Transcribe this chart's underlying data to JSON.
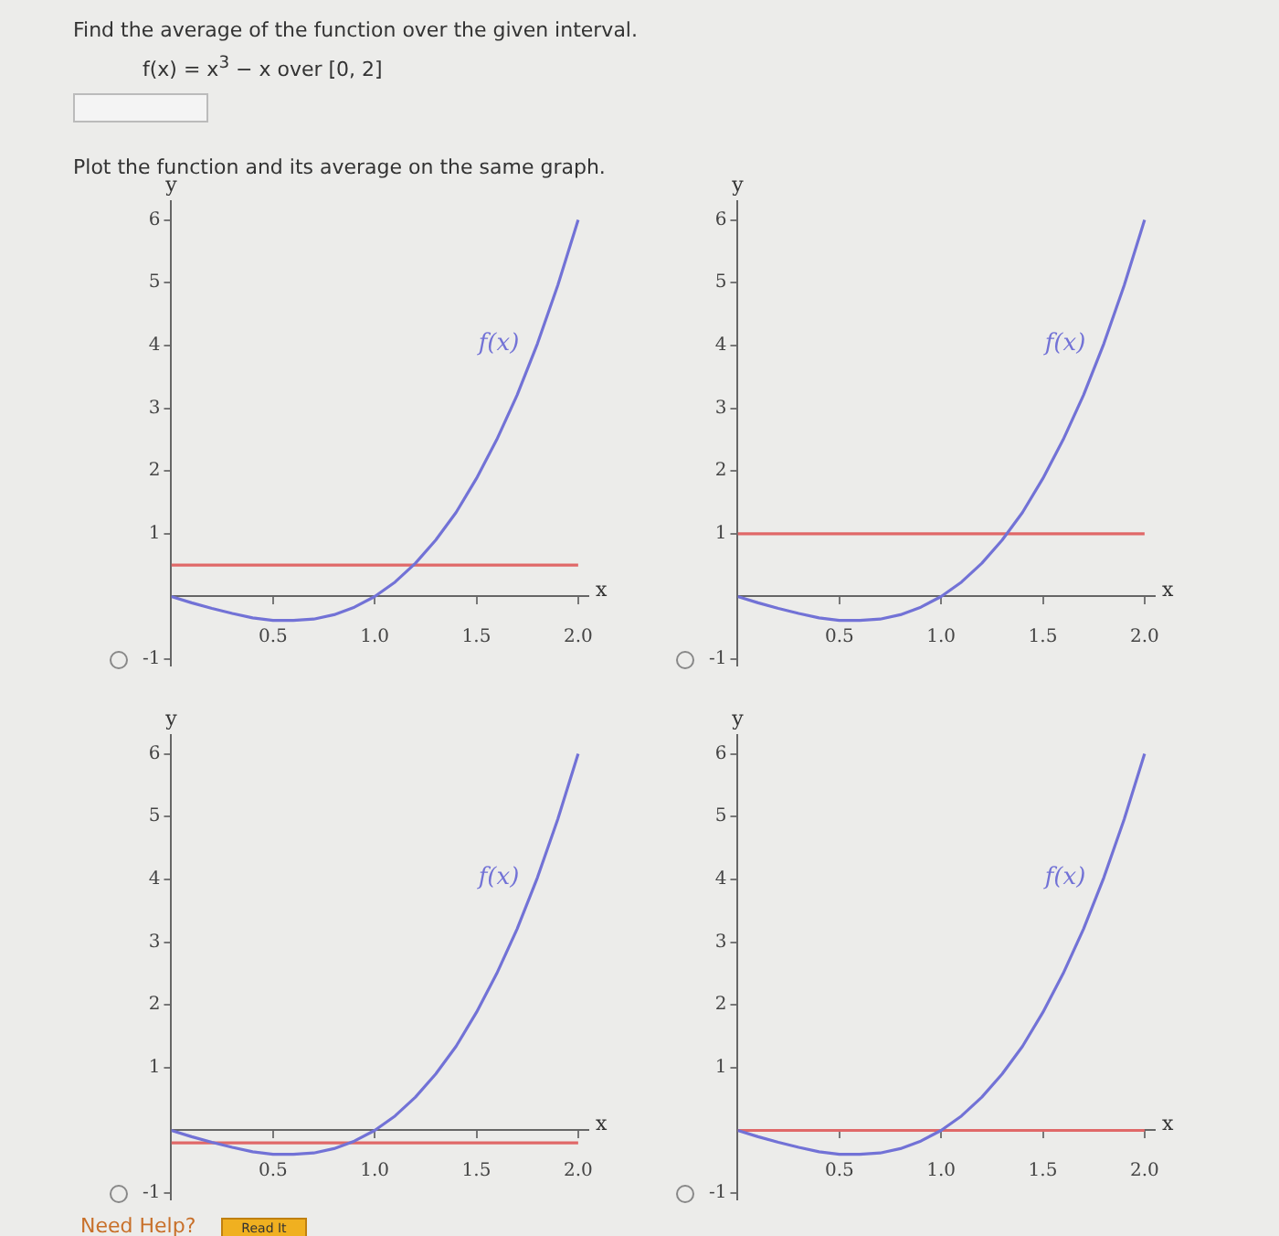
{
  "chart_data": [
    {
      "type": "line",
      "title": "Find the average of the function over the given interval.",
      "subtitle": "f(x) = x$^{3}$ − x over [0, 2]",
      "xlabel": "x",
      "ylabel": "y",
      "xlim": [
        0,
        2.05
      ],
      "ylim": [
        -1.1,
        6.3
      ],
      "xticks": [
        {
          "value": 0.5,
          "label": "0.5"
        },
        {
          "value": 1,
          "label": "1.0"
        },
        {
          "value": 1.5,
          "label": "1.5"
        },
        {
          "value": 2,
          "label": "2.0"
        }
      ],
      "yticks": [
        -1,
        1,
        2,
        3,
        4,
        5,
        6
      ],
      "series": [
        {
          "name": "f(x)",
          "color": "#7272d6",
          "x": [
            0,
            0.1,
            0.2,
            0.3,
            0.4,
            0.5,
            0.6,
            0.7,
            0.8,
            0.9,
            1,
            1.1,
            1.2,
            1.3,
            1.4,
            1.5,
            1.6,
            1.7,
            1.8,
            1.9,
            2
          ],
          "values": [
            0,
            -0.1,
            -0.19,
            -0.27,
            -0.34,
            -0.38,
            -0.38,
            -0.36,
            -0.29,
            -0.17,
            0,
            0.23,
            0.53,
            0.9,
            1.34,
            1.88,
            2.5,
            3.21,
            4.03,
            4.96,
            6
          ]
        },
        {
          "color": "#e06868",
          "x": [
            0,
            2
          ],
          "values": [
            0.5,
            0.5
          ]
        }
      ],
      "annotations": [
        "Plot the function and its average on the same graph."
      ],
      "marker": "none",
      "grid": false
    },
    {
      "type": "line",
      "xlabel": "x",
      "ylabel": "y",
      "xlim": [
        0,
        2.05
      ],
      "ylim": [
        -1.1,
        6.3
      ],
      "xticks": [
        {
          "value": 0.5,
          "label": "0.5"
        },
        {
          "value": 1,
          "label": "1.0"
        },
        {
          "value": 1.5,
          "label": "1.5"
        },
        {
          "value": 2,
          "label": "2.0"
        }
      ],
      "yticks": [
        -1,
        1,
        2,
        3,
        4,
        5,
        6
      ],
      "series": [
        {
          "name": "f(x)",
          "color": "#7272d6",
          "x": [
            0,
            0.1,
            0.2,
            0.3,
            0.4,
            0.5,
            0.6,
            0.7,
            0.8,
            0.9,
            1,
            1.1,
            1.2,
            1.3,
            1.4,
            1.5,
            1.6,
            1.7,
            1.8,
            1.9,
            2
          ],
          "values": [
            0,
            -0.1,
            -0.19,
            -0.27,
            -0.34,
            -0.38,
            -0.38,
            -0.36,
            -0.29,
            -0.17,
            0,
            0.23,
            0.53,
            0.9,
            1.34,
            1.88,
            2.5,
            3.21,
            4.03,
            4.96,
            6
          ]
        },
        {
          "color": "#e06868",
          "x": [
            0,
            2
          ],
          "values": [
            1,
            1
          ]
        }
      ],
      "marker": "none",
      "grid": false
    },
    {
      "type": "line",
      "xlabel": "x",
      "ylabel": "y",
      "xlim": [
        0,
        2.05
      ],
      "ylim": [
        -1.1,
        6.3
      ],
      "xticks": [
        {
          "value": 0.5,
          "label": "0.5"
        },
        {
          "value": 1,
          "label": "1.0"
        },
        {
          "value": 1.5,
          "label": "1.5"
        },
        {
          "value": 2,
          "label": "2.0"
        }
      ],
      "yticks": [
        -1,
        1,
        2,
        3,
        4,
        5,
        6
      ],
      "series": [
        {
          "name": "f(x)",
          "color": "#7272d6",
          "x": [
            0,
            0.1,
            0.2,
            0.3,
            0.4,
            0.5,
            0.6,
            0.7,
            0.8,
            0.9,
            1,
            1.1,
            1.2,
            1.3,
            1.4,
            1.5,
            1.6,
            1.7,
            1.8,
            1.9,
            2
          ],
          "values": [
            0,
            -0.1,
            -0.19,
            -0.27,
            -0.34,
            -0.38,
            -0.38,
            -0.36,
            -0.29,
            -0.17,
            0,
            0.23,
            0.53,
            0.9,
            1.34,
            1.88,
            2.5,
            3.21,
            4.03,
            4.96,
            6
          ]
        },
        {
          "color": "#e06868",
          "x": [
            0,
            2
          ],
          "values": [
            -0.2,
            -0.2
          ]
        }
      ],
      "annotations": [
        "Need Help?",
        "Read It"
      ],
      "marker": "none",
      "grid": false
    },
    {
      "type": "line",
      "xlabel": "x",
      "ylabel": "y",
      "xlim": [
        0,
        2.05
      ],
      "ylim": [
        -1.1,
        6.3
      ],
      "xticks": [
        {
          "value": 0.5,
          "label": "0.5"
        },
        {
          "value": 1,
          "label": "1.0"
        },
        {
          "value": 1.5,
          "label": "1.5"
        },
        {
          "value": 2,
          "label": "2.0"
        }
      ],
      "yticks": [
        -1,
        1,
        2,
        3,
        4,
        5,
        6
      ],
      "series": [
        {
          "name": "f(x)",
          "color": "#7272d6",
          "x": [
            0,
            0.1,
            0.2,
            0.3,
            0.4,
            0.5,
            0.6,
            0.7,
            0.8,
            0.9,
            1,
            1.1,
            1.2,
            1.3,
            1.4,
            1.5,
            1.6,
            1.7,
            1.8,
            1.9,
            2
          ],
          "values": [
            0,
            -0.1,
            -0.19,
            -0.27,
            -0.34,
            -0.38,
            -0.38,
            -0.36,
            -0.29,
            -0.17,
            0,
            0.23,
            0.53,
            0.9,
            1.34,
            1.88,
            2.5,
            3.21,
            4.03,
            4.96,
            6
          ]
        },
        {
          "color": "#e06868",
          "x": [
            0,
            2
          ],
          "values": [
            0,
            0
          ]
        }
      ],
      "marker": "none",
      "grid": false
    }
  ]
}
